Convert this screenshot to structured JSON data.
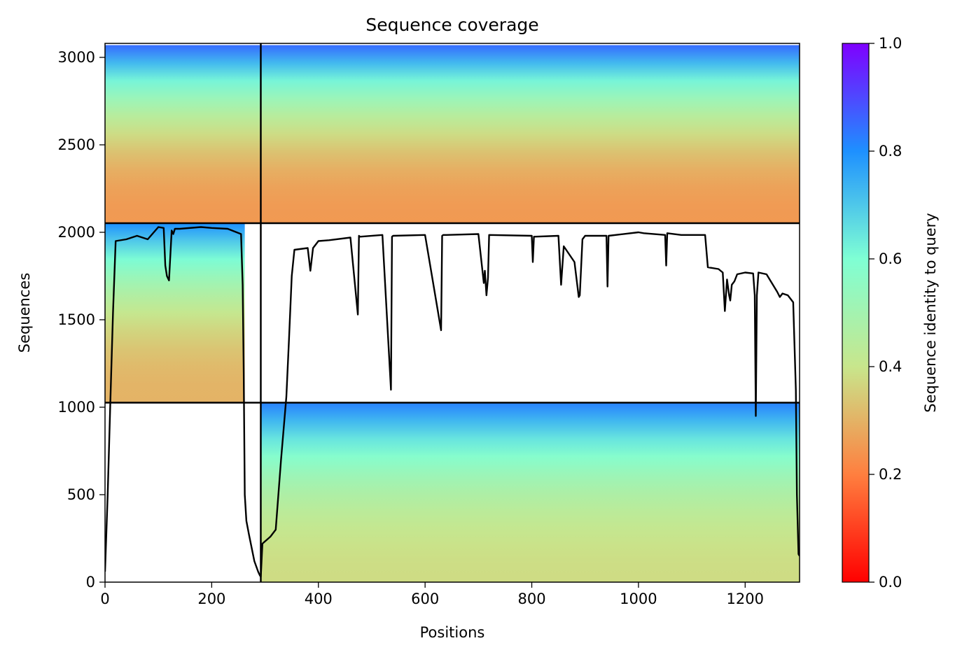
{
  "chart_data": {
    "type": "heatmap",
    "title": "Sequence coverage",
    "xlabel": "Positions",
    "ylabel": "Sequences",
    "colorbar_label": "Sequence identity to query",
    "xlim": [
      0,
      1302
    ],
    "ylim": [
      0,
      3080
    ],
    "x_ticks": [
      0,
      200,
      400,
      600,
      800,
      1000,
      1200
    ],
    "y_ticks": [
      0,
      500,
      1000,
      1500,
      2000,
      2500,
      3000
    ],
    "colorbar_ticks": [
      "0.0",
      "0.2",
      "0.4",
      "0.6",
      "0.8",
      "1.0"
    ],
    "colormap": "rainbow_r",
    "colormap_stops": [
      "#ff0000",
      "#ff7f3f",
      "#c8e68c",
      "#7fffd4",
      "#1e90ff",
      "#7f00ff"
    ],
    "chain_boundaries": {
      "x": 292,
      "y": [
        1026,
        2052
      ]
    },
    "blocks": [
      {
        "name": "chain-A-paired",
        "x": [
          0,
          292
        ],
        "y": [
          2052,
          3070
        ],
        "identity_bottom": 0.25,
        "identity_top": 0.85
      },
      {
        "name": "chain-B-paired",
        "x": [
          292,
          1302
        ],
        "y": [
          2052,
          3070
        ],
        "identity_bottom": 0.25,
        "identity_top": 0.85
      },
      {
        "name": "chain-A-unpaired",
        "x": [
          0,
          262
        ],
        "y": [
          1026,
          2052
        ],
        "identity_bottom": 0.3,
        "identity_top": 0.8
      },
      {
        "name": "chain-B-unpaired",
        "x": [
          292,
          1302
        ],
        "y": [
          0,
          1026
        ],
        "identity_bottom": 0.38,
        "identity_top": 0.82
      }
    ],
    "series": [
      {
        "type": "line",
        "color": "#000000",
        "x": [
          0,
          5,
          10,
          15,
          20,
          40,
          60,
          80,
          100,
          110,
          113,
          116,
          120,
          125,
          128,
          131,
          140,
          180,
          200,
          230,
          255,
          258,
          260,
          262,
          265,
          270,
          280,
          287,
          290,
          292,
          295,
          310,
          320,
          330,
          340,
          345,
          350,
          355,
          380,
          385,
          390,
          400,
          420,
          460,
          474,
          476,
          478,
          520,
          536,
          538,
          540,
          600,
          630,
          632,
          634,
          636,
          640,
          700,
          710,
          712,
          715,
          718,
          720,
          800,
          802,
          804,
          850,
          855,
          860,
          880,
          888,
          890,
          895,
          900,
          940,
          942,
          944,
          1000,
          1010,
          1050,
          1052,
          1054,
          1080,
          1125,
          1130,
          1150,
          1158,
          1162,
          1166,
          1170,
          1172,
          1175,
          1180,
          1185,
          1200,
          1215,
          1218,
          1220,
          1222,
          1225,
          1240,
          1260,
          1265,
          1270,
          1280,
          1290,
          1295,
          1297,
          1300,
          1302
        ],
        "y": [
          60,
          500,
          1030,
          1540,
          1950,
          1960,
          1980,
          1960,
          2030,
          2025,
          1810,
          1750,
          1725,
          2010,
          1990,
          2020,
          2020,
          2030,
          2025,
          2020,
          1990,
          1700,
          1200,
          500,
          350,
          270,
          120,
          60,
          40,
          30,
          220,
          260,
          300,
          700,
          1060,
          1400,
          1750,
          1900,
          1910,
          1780,
          1910,
          1950,
          1955,
          1970,
          1530,
          1980,
          1975,
          1985,
          1100,
          1975,
          1980,
          1985,
          1440,
          1980,
          1985,
          1985,
          1985,
          1990,
          1710,
          1780,
          1640,
          1740,
          1985,
          1980,
          1830,
          1975,
          1980,
          1700,
          1920,
          1830,
          1630,
          1640,
          1960,
          1980,
          1980,
          1690,
          1980,
          2000,
          1995,
          1985,
          1810,
          1995,
          1985,
          1985,
          1800,
          1790,
          1770,
          1550,
          1730,
          1640,
          1610,
          1700,
          1720,
          1760,
          1770,
          1765,
          1640,
          950,
          1640,
          1770,
          1760,
          1660,
          1630,
          1650,
          1640,
          1600,
          1100,
          500,
          160,
          150
        ]
      }
    ]
  }
}
